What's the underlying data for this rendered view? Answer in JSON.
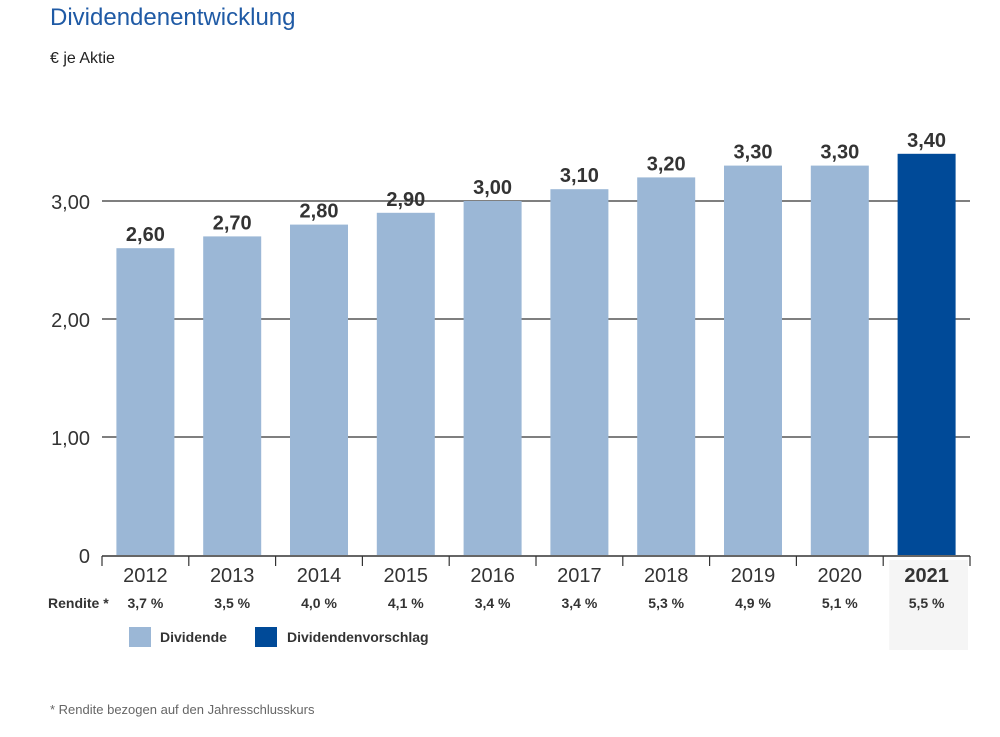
{
  "page": {
    "title": "Dividendenentwicklung",
    "unit": "€ je Aktie",
    "footnote": "* Rendite bezogen auf den Jahresschlusskurs"
  },
  "chart_data": {
    "type": "bar",
    "title": "Dividendenentwicklung",
    "subtitle": "€ je Aktie",
    "categories": [
      "2012",
      "2013",
      "2014",
      "2015",
      "2016",
      "2017",
      "2018",
      "2019",
      "2020",
      "2021"
    ],
    "series": [
      {
        "name": "Dividende",
        "values": [
          2.6,
          2.7,
          2.8,
          2.9,
          3.0,
          3.1,
          3.2,
          3.3,
          3.3,
          null
        ],
        "color": "#9bb7d6"
      },
      {
        "name": "Dividendenvorschlag",
        "values": [
          null,
          null,
          null,
          null,
          null,
          null,
          null,
          null,
          null,
          3.4
        ],
        "color": "#004a98"
      }
    ],
    "data_labels": [
      "2,60",
      "2,70",
      "2,80",
      "2,90",
      "3,00",
      "3,10",
      "3,20",
      "3,30",
      "3,30",
      "3,40"
    ],
    "yticks": [
      0,
      1,
      2,
      3
    ],
    "ytick_labels": [
      "0",
      "1,00",
      "2,00",
      "3,00"
    ],
    "ylim": [
      0,
      3.4
    ],
    "grid": true,
    "highlight_category": "2021",
    "rendite_label": "Rendite *",
    "rendite": [
      "3,7 %",
      "3,5 %",
      "4,0 %",
      "4,1 %",
      "3,4 %",
      "3,4 %",
      "5,3 %",
      "4,9 %",
      "5,1 %",
      "5,5 %"
    ],
    "legend_position": "bottom-left"
  }
}
